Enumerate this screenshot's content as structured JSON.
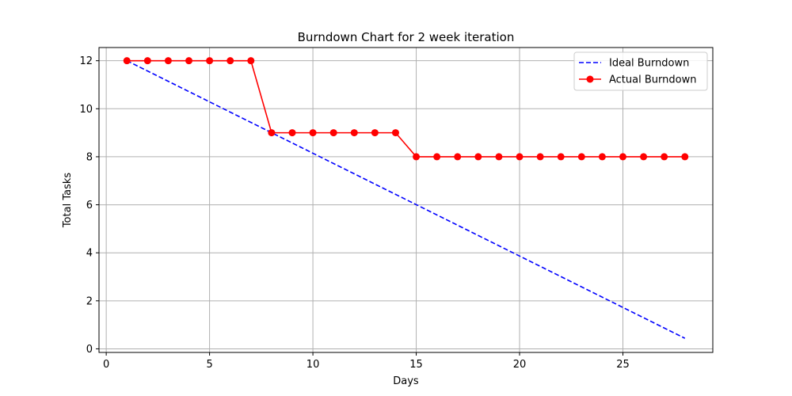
{
  "chart_data": {
    "type": "line",
    "title": "Burndown Chart for 2 week iteration",
    "xlabel": "Days",
    "ylabel": "Total Tasks",
    "xlim": [
      -0.35,
      29.35
    ],
    "ylim": [
      -0.15,
      12.55
    ],
    "xticks": [
      0,
      5,
      10,
      15,
      20,
      25
    ],
    "yticks": [
      0,
      2,
      4,
      6,
      8,
      10,
      12
    ],
    "grid": true,
    "legend_position": "top-right",
    "series": [
      {
        "name": "Ideal Burndown",
        "style": "dashed",
        "color": "#0000ff",
        "x": [
          1,
          28
        ],
        "y": [
          12,
          0.44
        ]
      },
      {
        "name": "Actual Burndown",
        "style": "solid",
        "marker": "circle",
        "color": "#ff0000",
        "x": [
          1,
          2,
          3,
          4,
          5,
          6,
          7,
          8,
          9,
          10,
          11,
          12,
          13,
          14,
          15,
          16,
          17,
          18,
          19,
          20,
          21,
          22,
          23,
          24,
          25,
          26,
          27,
          28
        ],
        "y": [
          12,
          12,
          12,
          12,
          12,
          12,
          12,
          9,
          9,
          9,
          9,
          9,
          9,
          9,
          8,
          8,
          8,
          8,
          8,
          8,
          8,
          8,
          8,
          8,
          8,
          8,
          8,
          8
        ]
      }
    ]
  }
}
